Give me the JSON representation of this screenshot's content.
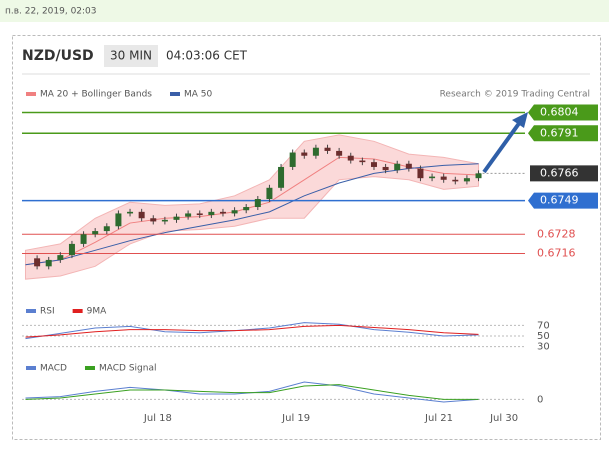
{
  "timestamp_bar": "п.в. 22, 2019, 02:03",
  "header": {
    "symbol": "NZD/USD",
    "interval": "30 MIN",
    "time": "04:03:06 CET"
  },
  "legend": {
    "items": [
      {
        "name": "MA 20 + Bollinger Bands",
        "color": "#f08080"
      },
      {
        "name": "MA 50",
        "color": "#3a5fa8"
      }
    ],
    "credit": "Research © 2019 Trading Central"
  },
  "price": {
    "xlim": [
      -0.3,
      43
    ],
    "ylim": [
      0.6687,
      0.6823
    ],
    "xticks": [
      {
        "value": 11.4,
        "label": "Jul 18"
      },
      {
        "value": 23.3,
        "label": "Jul 19"
      },
      {
        "value": 35.6,
        "label": "Jul 21"
      },
      {
        "value": 41.2,
        "label": "Jul 30"
      }
    ],
    "up_color": "#2e6b2e",
    "down_color": "#6b2e2e",
    "closes": [
      0.6713,
      0.6708,
      0.6712,
      0.6715,
      0.6722,
      0.6728,
      0.673,
      0.6733,
      0.6741,
      0.6742,
      0.6738,
      0.6736,
      0.6737,
      0.6739,
      0.6741,
      0.674,
      0.6742,
      0.6741,
      0.6743,
      0.6745,
      0.675,
      0.6757,
      0.677,
      0.6779,
      0.6777,
      0.6782,
      0.678,
      0.6777,
      0.6774,
      0.6773,
      0.677,
      0.6768,
      0.6772,
      0.6769,
      0.6763,
      0.6764,
      0.6762,
      0.6761,
      0.6763,
      0.6766
    ],
    "x": [
      0,
      3,
      6,
      9,
      12,
      15,
      18,
      21,
      24,
      27,
      30,
      33,
      36,
      39
    ],
    "upper": [
      0.6718,
      0.6722,
      0.6738,
      0.6748,
      0.6746,
      0.6747,
      0.6752,
      0.6762,
      0.6786,
      0.679,
      0.6786,
      0.6778,
      0.6776,
      0.6772
    ],
    "lower": [
      0.67,
      0.6702,
      0.6708,
      0.6722,
      0.673,
      0.6731,
      0.6733,
      0.6738,
      0.6738,
      0.6762,
      0.6764,
      0.6762,
      0.6756,
      0.6758
    ],
    "ma20": [
      0.6709,
      0.6712,
      0.6723,
      0.6735,
      0.6738,
      0.6739,
      0.6742,
      0.6748,
      0.6762,
      0.6776,
      0.6775,
      0.677,
      0.6766,
      0.6765
    ],
    "ma50": [
      0.6709,
      0.6712,
      0.6718,
      0.6724,
      0.6729,
      0.6733,
      0.6737,
      0.6742,
      0.6752,
      0.676,
      0.6766,
      0.6769,
      0.6771,
      0.6772
    ],
    "levels": [
      {
        "value": 0.6804,
        "color": "#4a9a1a",
        "style": "box"
      },
      {
        "value": 0.6791,
        "color": "#4a9a1a",
        "style": "box"
      },
      {
        "value": 0.6766,
        "color": "#333333",
        "style": "current"
      },
      {
        "value": 0.6749,
        "color": "#2f6fd0",
        "style": "box"
      },
      {
        "value": 0.6728,
        "color": "#e05050",
        "style": "text"
      },
      {
        "value": 0.6716,
        "color": "#e05050",
        "style": "text"
      }
    ]
  },
  "rsi": {
    "legend": [
      {
        "name": "RSI",
        "color": "#5b7fd0"
      },
      {
        "name": "9MA",
        "color": "#e02020"
      }
    ],
    "ylim": [
      20,
      80
    ],
    "yticks": [
      70,
      50,
      30
    ],
    "values": [
      45,
      55,
      65,
      68,
      58,
      56,
      60,
      65,
      75,
      72,
      62,
      57,
      50,
      52
    ],
    "ma9": [
      48,
      52,
      58,
      62,
      62,
      60,
      60,
      62,
      68,
      70,
      66,
      62,
      56,
      53
    ]
  },
  "macd": {
    "legend": [
      {
        "name": "MACD",
        "color": "#5b7fd0"
      },
      {
        "name": "MACD Signal",
        "color": "#3aa020"
      }
    ],
    "ylim": [
      -0.0008,
      0.0016
    ],
    "yticks": [
      0
    ],
    "values": [
      0.0001,
      0.0002,
      0.0006,
      0.0009,
      0.0007,
      0.0004,
      0.0004,
      0.0006,
      0.0013,
      0.001,
      0.0004,
      0.0001,
      -0.0002,
      0.0
    ],
    "signal": [
      0.0,
      0.0001,
      0.0004,
      0.0007,
      0.0007,
      0.0006,
      0.0005,
      0.0005,
      0.001,
      0.0011,
      0.0007,
      0.0003,
      0.0,
      0.0
    ]
  }
}
